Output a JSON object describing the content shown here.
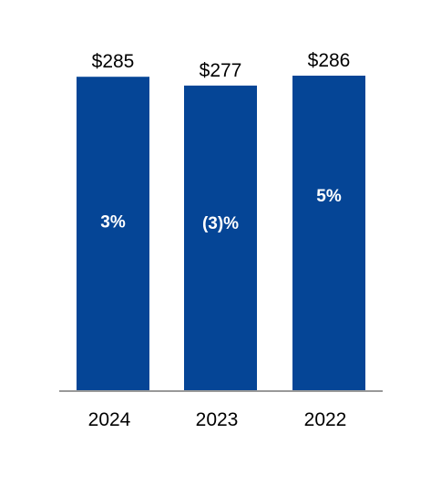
{
  "chart_data": {
    "type": "bar",
    "categories": [
      "2024",
      "2023",
      "2022"
    ],
    "values": [
      285,
      277,
      286
    ],
    "value_labels": [
      "$285",
      "$277",
      "$286"
    ],
    "change_labels": [
      "3%",
      "(3)%",
      "5%"
    ],
    "bar_color": "#054596",
    "axis_color": "#999999",
    "ylim": [
      0,
      286
    ],
    "grid": false,
    "legend": false
  }
}
